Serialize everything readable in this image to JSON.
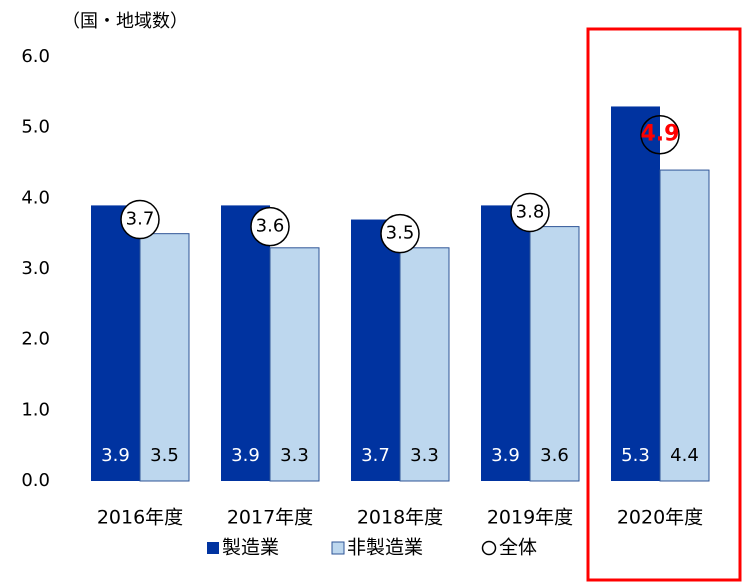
{
  "chart_data": {
    "type": "bar",
    "y_axis_label": "（国・地域数）",
    "categories": [
      "2016年度",
      "2017年度",
      "2018年度",
      "2019年度",
      "2020年度"
    ],
    "series": [
      {
        "name": "製造業",
        "color": "#0033a0",
        "values": [
          3.9,
          3.9,
          3.7,
          3.9,
          5.3
        ]
      },
      {
        "name": "非製造業",
        "color": "#bdd7ee",
        "values": [
          3.5,
          3.3,
          3.3,
          3.6,
          4.4
        ]
      }
    ],
    "overall": {
      "name": "全体",
      "values": [
        3.7,
        3.6,
        3.5,
        3.8,
        4.9
      ]
    },
    "ylim": [
      0,
      6
    ],
    "yticks": [
      {
        "value": 0,
        "label": "0.0"
      },
      {
        "value": 1,
        "label": "1.0"
      },
      {
        "value": 2,
        "label": "2.0"
      },
      {
        "value": 3,
        "label": "3.0"
      },
      {
        "value": 4,
        "label": "4.0"
      },
      {
        "value": 5,
        "label": "5.0"
      },
      {
        "value": 6,
        "label": "6.0"
      }
    ],
    "grid": false
  }
}
